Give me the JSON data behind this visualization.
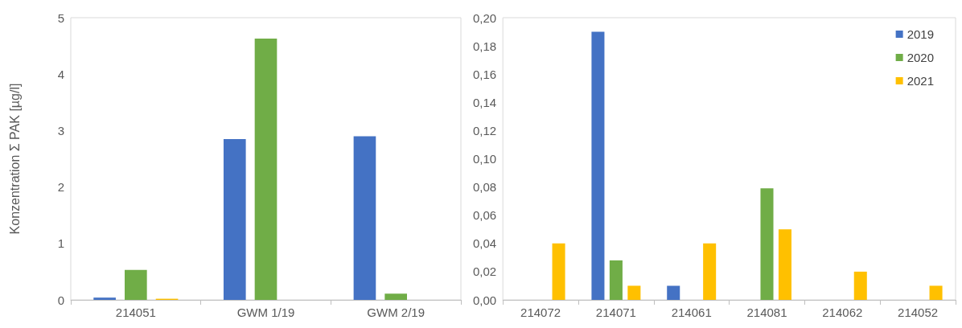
{
  "chart_data": [
    {
      "type": "bar",
      "ylabel": "Konzentration Σ PAK [µg/l]",
      "categories": [
        "214051",
        "GWM 1/19",
        "GWM 2/19"
      ],
      "series": [
        {
          "color": "#4472c4",
          "values": [
            0.04,
            2.85,
            2.9
          ]
        },
        {
          "color": "#70ad47",
          "values": [
            0.53,
            4.63,
            0.11
          ]
        },
        {
          "color": "#ffc000",
          "values": [
            0.02,
            null,
            null
          ]
        }
      ],
      "ylim": [
        0,
        5
      ],
      "yticks": [
        0,
        1,
        2,
        3,
        4,
        5
      ],
      "grid": false,
      "legend": false
    },
    {
      "type": "bar",
      "categories": [
        "214072",
        "214071",
        "214061",
        "214081",
        "214062",
        "214052"
      ],
      "series": [
        {
          "name": "2019",
          "color": "#4472c4",
          "values": [
            null,
            0.19,
            0.01,
            null,
            null,
            null
          ]
        },
        {
          "name": "2020",
          "color": "#70ad47",
          "values": [
            null,
            0.028,
            null,
            0.079,
            null,
            null
          ]
        },
        {
          "name": "2021",
          "color": "#ffc000",
          "values": [
            0.04,
            0.01,
            0.04,
            0.05,
            0.02,
            0.01
          ]
        }
      ],
      "ylim": [
        0,
        0.2
      ],
      "yticks": [
        {
          "value": 0,
          "label": "0,00"
        },
        {
          "value": 0.02,
          "label": "0,02"
        },
        {
          "value": 0.04,
          "label": "0,04"
        },
        {
          "value": 0.06,
          "label": "0,06"
        },
        {
          "value": 0.08,
          "label": "0,08"
        },
        {
          "value": 0.1,
          "label": "0,10"
        },
        {
          "value": 0.12,
          "label": "0,12"
        },
        {
          "value": 0.14,
          "label": "0,14"
        },
        {
          "value": 0.16,
          "label": "0,16"
        },
        {
          "value": 0.18,
          "label": "0,18"
        },
        {
          "value": 0.2,
          "label": "0,20"
        }
      ],
      "grid": false,
      "legend": "top right"
    }
  ]
}
